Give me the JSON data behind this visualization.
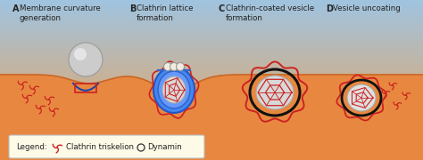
{
  "bg_top_color": "#a0c4e0",
  "bg_bottom_color": "#f0a050",
  "membrane_color": "#e88840",
  "membrane_top_color": "#c86828",
  "clathrin_color": "#cc2222",
  "blue_coat_color": "#3366cc",
  "blue_coat_light": "#6699ee",
  "vesicle_fill": "#d8d8d8",
  "vesicle_edge": "#aaaaaa",
  "dynamin_fill": "#f0ede0",
  "dynamin_edge": "#999999",
  "black_ring": "#111111",
  "legend_bg": "#fefae8",
  "labels": [
    "A",
    "B",
    "C",
    "D"
  ],
  "label_texts": [
    "Membrane curvature\ngeneration",
    "Clathrin lattice\nformation",
    "Clathrin-coated vesicle\nformation",
    "Vesicle uncoating"
  ],
  "legend_clathrin": "Clathrin triskelion",
  "legend_dynamin": "Dynamin",
  "figsize": [
    4.74,
    1.8
  ],
  "dpi": 100
}
